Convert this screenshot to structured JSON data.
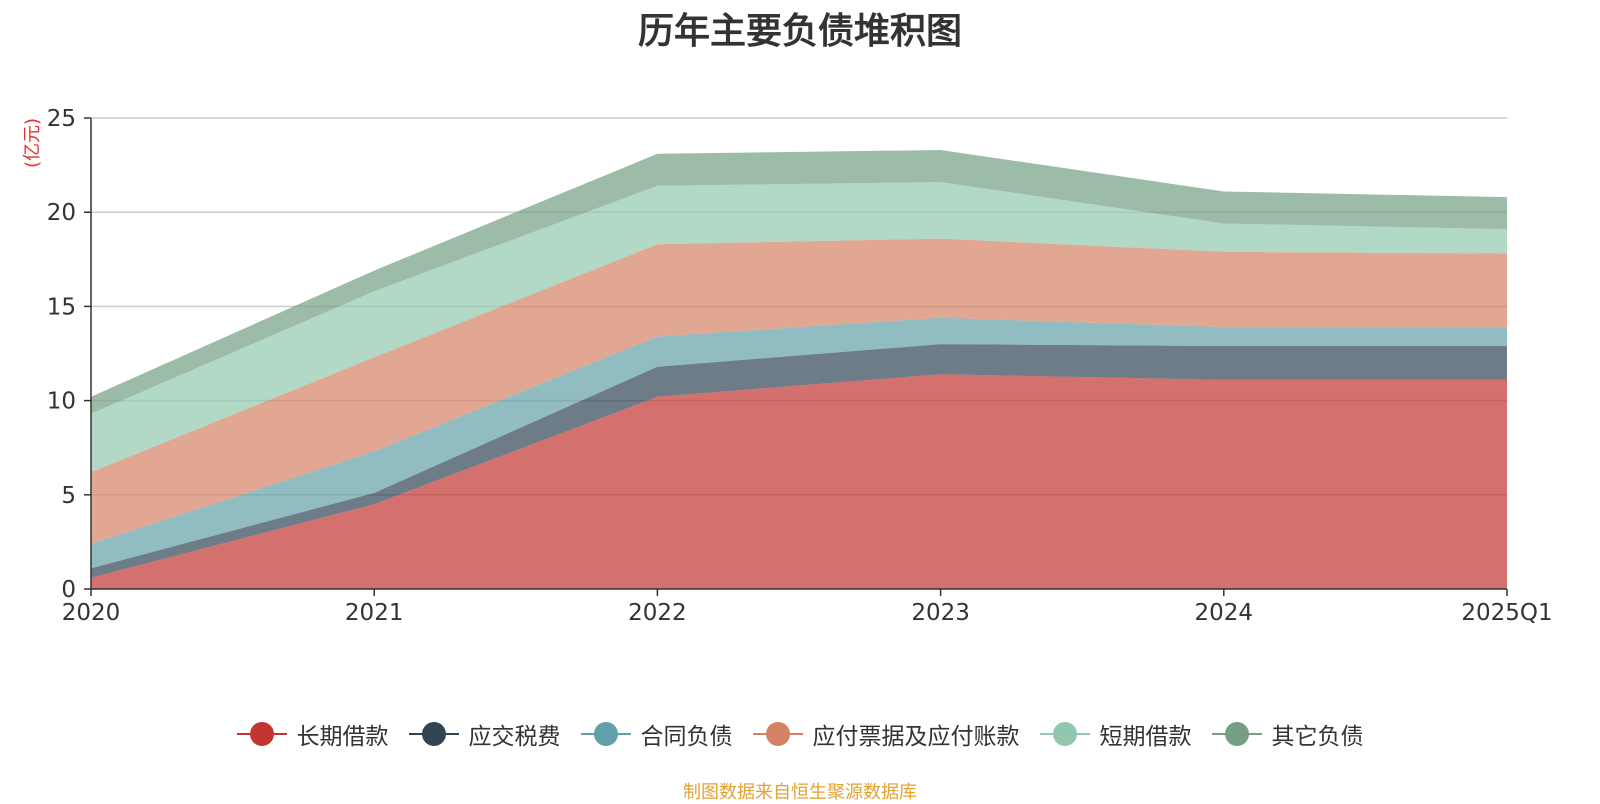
{
  "chart_data": {
    "type": "area",
    "stacked": true,
    "title": "历年主要负债堆积图",
    "unit_label": "(亿元)",
    "categories": [
      "2020",
      "2021",
      "2022",
      "2023",
      "2024",
      "2025Q1"
    ],
    "ylim": [
      0,
      25
    ],
    "yticks": [
      0,
      5,
      10,
      15,
      20,
      25
    ],
    "grid": true,
    "legend_position": "bottom-center",
    "series": [
      {
        "name": "长期借款",
        "color": "#c23531",
        "values": [
          0.6,
          4.5,
          10.2,
          11.4,
          11.1,
          11.1
        ]
      },
      {
        "name": "应交税费",
        "color": "#2f4554",
        "values": [
          0.5,
          0.6,
          1.6,
          1.6,
          1.8,
          1.8
        ]
      },
      {
        "name": "合同负债",
        "color": "#61a0a8",
        "values": [
          1.3,
          2.2,
          1.6,
          1.4,
          1.0,
          1.0
        ]
      },
      {
        "name": "应付票据及应付账款",
        "color": "#d48265",
        "values": [
          3.8,
          5.0,
          4.9,
          4.2,
          4.0,
          3.9
        ]
      },
      {
        "name": "短期借款",
        "color": "#91c7ae",
        "values": [
          3.1,
          3.5,
          3.1,
          3.0,
          1.5,
          1.3
        ]
      },
      {
        "name": "其它负债",
        "color": "#749f83",
        "values": [
          0.9,
          1.1,
          1.7,
          1.7,
          1.7,
          1.7
        ]
      }
    ]
  },
  "source_note": "制图数据来自恒生聚源数据库"
}
